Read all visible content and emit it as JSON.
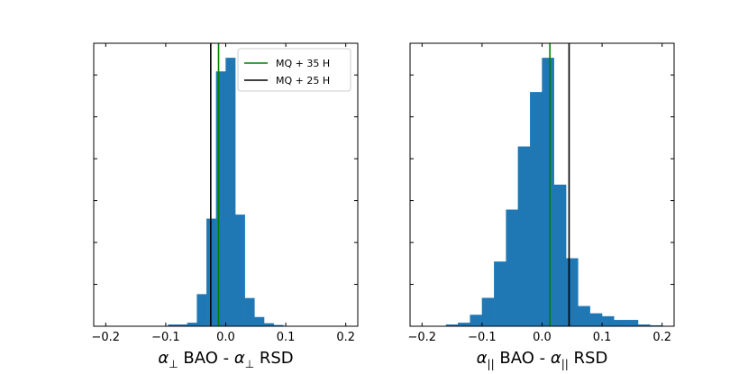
{
  "chart_data": [
    {
      "type": "bar",
      "subtype": "histogram",
      "xlabel": "α⊥ BAO - α⊥ RSD",
      "xlabel_parts": {
        "sym1": "α",
        "sub1": "⊥",
        "mid": " BAO - ",
        "sym2": "α",
        "sub2": "⊥",
        "end": " RSD"
      },
      "xlim": [
        -0.22,
        0.22
      ],
      "ylim": [
        0,
        1.0
      ],
      "xticks": [
        -0.2,
        -0.1,
        0.0,
        0.1,
        0.2
      ],
      "xtick_labels": [
        "−0.2",
        "−0.1",
        "0.0",
        "0.1",
        "0.2"
      ],
      "y_tick_labels_visible": false,
      "bar_color": "#1f77b4",
      "bins": [
        {
          "x0": -0.096,
          "x1": -0.08,
          "value": 0.006
        },
        {
          "x0": -0.08,
          "x1": -0.064,
          "value": 0.006
        },
        {
          "x0": -0.064,
          "x1": -0.048,
          "value": 0.012
        },
        {
          "x0": -0.048,
          "x1": -0.032,
          "value": 0.113
        },
        {
          "x0": -0.032,
          "x1": -0.016,
          "value": 0.38
        },
        {
          "x0": -0.016,
          "x1": 0.0,
          "value": 0.9
        },
        {
          "x0": 0.0,
          "x1": 0.016,
          "value": 0.948
        },
        {
          "x0": 0.016,
          "x1": 0.032,
          "value": 0.394
        },
        {
          "x0": 0.032,
          "x1": 0.048,
          "value": 0.099
        },
        {
          "x0": 0.048,
          "x1": 0.064,
          "value": 0.032
        },
        {
          "x0": 0.064,
          "x1": 0.08,
          "value": 0.01
        },
        {
          "x0": 0.08,
          "x1": 0.096,
          "value": 0.004
        }
      ],
      "vlines": [
        {
          "x": -0.025,
          "color": "#000000"
        },
        {
          "x": -0.012,
          "color": "#008000"
        }
      ],
      "legend": {
        "placement": "top-right",
        "entries": [
          {
            "label": "MQ + 35 H",
            "color": "#008000"
          },
          {
            "label": "MQ + 25 H",
            "color": "#000000"
          }
        ]
      }
    },
    {
      "type": "bar",
      "subtype": "histogram",
      "xlabel": "α|| BAO - α|| RSD",
      "xlabel_parts": {
        "sym1": "α",
        "sub1": "||",
        "mid": " BAO - ",
        "sym2": "α",
        "sub2": "||",
        "end": " RSD"
      },
      "xlim": [
        -0.22,
        0.22
      ],
      "ylim": [
        0,
        1.0
      ],
      "xticks": [
        -0.2,
        -0.1,
        0.0,
        0.1,
        0.2
      ],
      "xtick_labels": [
        "−0.2",
        "−0.1",
        "0.0",
        "0.1",
        "0.2"
      ],
      "y_tick_labels_visible": false,
      "bar_color": "#1f77b4",
      "bins": [
        {
          "x0": -0.16,
          "x1": -0.14,
          "value": 0.006
        },
        {
          "x0": -0.14,
          "x1": -0.12,
          "value": 0.012
        },
        {
          "x0": -0.12,
          "x1": -0.1,
          "value": 0.04
        },
        {
          "x0": -0.1,
          "x1": -0.08,
          "value": 0.1
        },
        {
          "x0": -0.08,
          "x1": -0.06,
          "value": 0.228
        },
        {
          "x0": -0.06,
          "x1": -0.04,
          "value": 0.412
        },
        {
          "x0": -0.04,
          "x1": -0.02,
          "value": 0.635
        },
        {
          "x0": -0.02,
          "x1": 0.0,
          "value": 0.827
        },
        {
          "x0": 0.0,
          "x1": 0.02,
          "value": 0.948
        },
        {
          "x0": 0.02,
          "x1": 0.04,
          "value": 0.5
        },
        {
          "x0": 0.04,
          "x1": 0.06,
          "value": 0.24
        },
        {
          "x0": 0.06,
          "x1": 0.08,
          "value": 0.071
        },
        {
          "x0": 0.08,
          "x1": 0.1,
          "value": 0.045
        },
        {
          "x0": 0.1,
          "x1": 0.12,
          "value": 0.035
        },
        {
          "x0": 0.12,
          "x1": 0.14,
          "value": 0.022
        },
        {
          "x0": 0.14,
          "x1": 0.16,
          "value": 0.022
        },
        {
          "x0": 0.16,
          "x1": 0.18,
          "value": 0.006
        },
        {
          "x0": 0.18,
          "x1": 0.2,
          "value": 0.003
        }
      ],
      "vlines": [
        {
          "x": 0.013,
          "color": "#008000"
        },
        {
          "x": 0.045,
          "color": "#000000"
        }
      ]
    }
  ]
}
